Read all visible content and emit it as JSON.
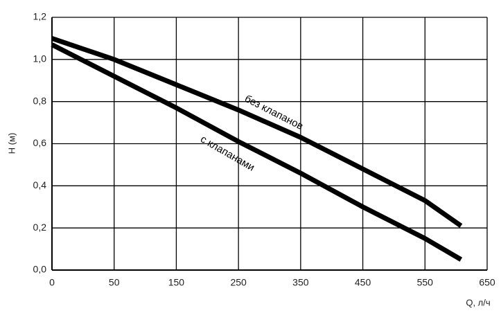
{
  "chart_data": {
    "type": "line",
    "x_label": "Q, л/ч",
    "y_label": "H (м)",
    "x": [
      0,
      50,
      150,
      250,
      350,
      450,
      550,
      608
    ],
    "series": [
      {
        "name": "без клапанов",
        "color": "#000000",
        "values": [
          1.1,
          1.0,
          0.88,
          0.76,
          0.63,
          0.48,
          0.33,
          0.21
        ]
      },
      {
        "name": "с клапанами",
        "color": "#000000",
        "values": [
          1.07,
          0.92,
          0.77,
          0.61,
          0.46,
          0.3,
          0.15,
          0.05
        ]
      }
    ],
    "xlim": [
      0,
      650
    ],
    "xticks": [
      0,
      50,
      150,
      250,
      350,
      450,
      550,
      650
    ],
    "ylim": [
      0,
      1.2
    ],
    "yticks": [
      {
        "value": 0,
        "label": "0,0"
      },
      {
        "value": 0.2,
        "label": "0,2"
      },
      {
        "value": 0.4,
        "label": "0,4"
      },
      {
        "value": 0.6,
        "label": "0,6"
      },
      {
        "value": 0.8,
        "label": "0,8"
      },
      {
        "value": 1.0,
        "label": "1,0"
      },
      {
        "value": 1.2,
        "label": "1,2"
      }
    ],
    "grid": true
  }
}
